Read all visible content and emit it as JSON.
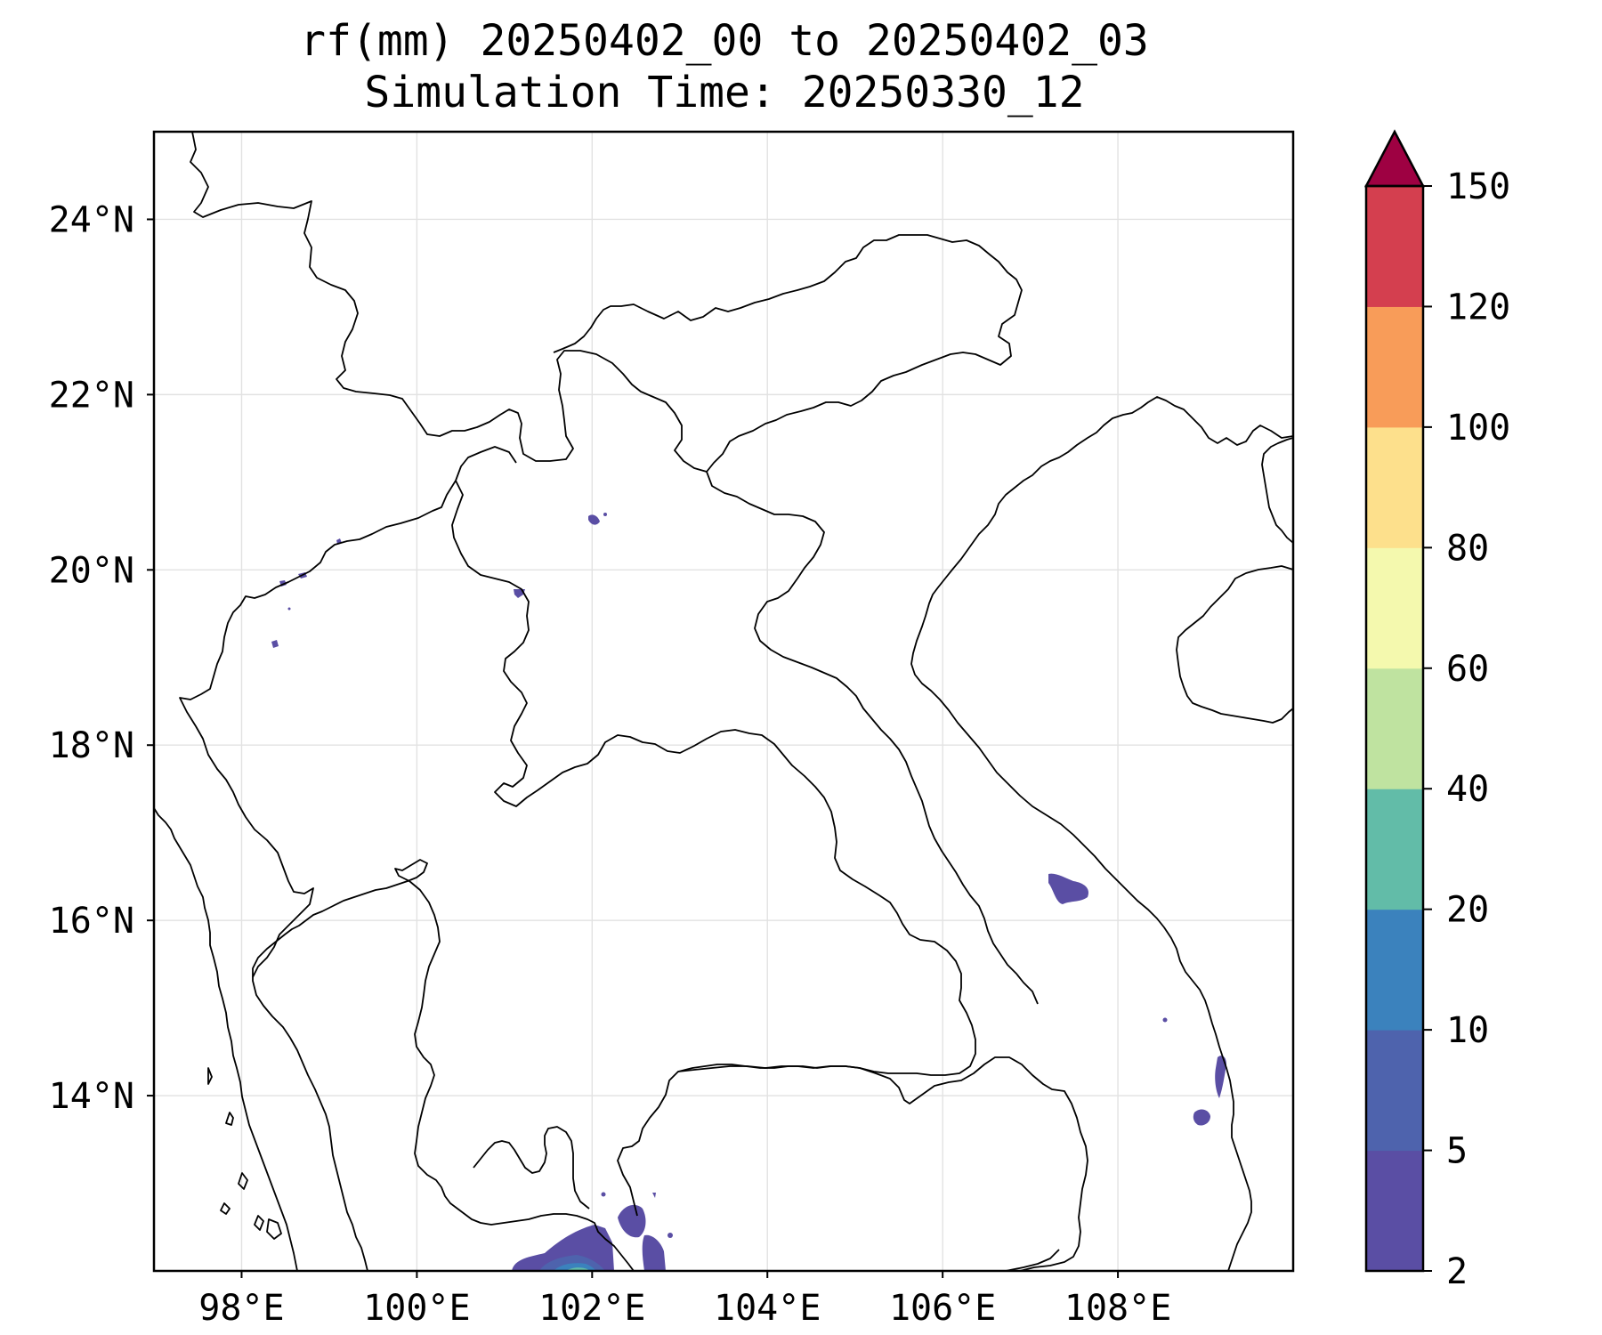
{
  "title": {
    "line1": "rf(mm) 20250402_00 to 20250402_03",
    "line2": "Simulation Time: 20250330_12"
  },
  "map": {
    "lon_range": [
      97.0,
      110.0
    ],
    "lat_range": [
      12.0,
      25.0
    ],
    "lon_ticks": [
      98,
      100,
      102,
      104,
      106,
      108
    ],
    "lat_ticks": [
      14,
      16,
      18,
      20,
      22,
      24
    ],
    "lon_tick_labels": [
      "98°E",
      "100°E",
      "102°E",
      "104°E",
      "106°E",
      "108°E"
    ],
    "lat_tick_labels": [
      "14°N",
      "16°N",
      "18°N",
      "20°N",
      "22°N",
      "24°N"
    ],
    "gridlines": true,
    "features": [
      "coastline",
      "country-borders"
    ]
  },
  "colorbar": {
    "levels": [
      2,
      5,
      10,
      20,
      40,
      60,
      80,
      100,
      120,
      150
    ],
    "tick_labels": [
      "2",
      "5",
      "10",
      "20",
      "40",
      "60",
      "80",
      "100",
      "120",
      "150"
    ],
    "colors": [
      "#5a4ea4",
      "#4e63ad",
      "#3b82bd",
      "#62bca8",
      "#bfe3a0",
      "#f4f9ae",
      "#fde08c",
      "#f89c59",
      "#d43f4f",
      "#9e0142"
    ],
    "extend": "max"
  },
  "rain_cells": [
    {
      "id": "gulf-thailand-cluster",
      "lon": 101.9,
      "lat": 12.15,
      "category": "2-5 with 10-20 core"
    },
    {
      "id": "cambodia-coast-cell",
      "lon": 102.4,
      "lat": 12.55,
      "category": "2-5"
    },
    {
      "id": "central-vietnam-cell",
      "lon": 107.4,
      "lat": 16.35,
      "category": "2-5"
    },
    {
      "id": "south-central-vietnam-cell-a",
      "lon": 109.1,
      "lat": 14.25,
      "category": "2-5"
    },
    {
      "id": "south-central-vietnam-cell-b",
      "lon": 108.95,
      "lat": 13.75,
      "category": "2-5"
    },
    {
      "id": "north-laos-cell-a",
      "lon": 102.05,
      "lat": 20.55,
      "category": "2-5"
    },
    {
      "id": "north-laos-cell-b",
      "lon": 101.4,
      "lat": 19.7,
      "category": "2-5"
    },
    {
      "id": "north-thailand-cells",
      "lon": 98.2,
      "lat": 19.5,
      "category": "2-5"
    }
  ]
}
